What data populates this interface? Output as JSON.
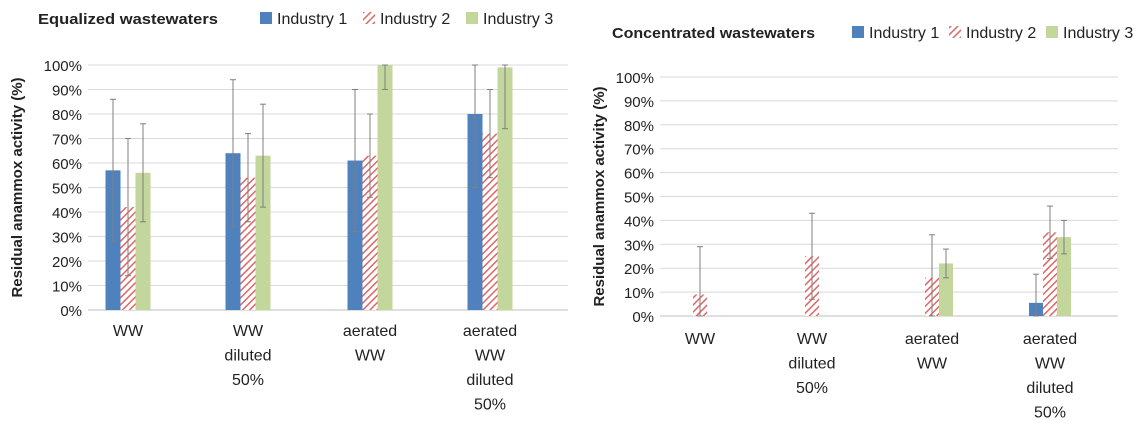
{
  "chart_data": [
    {
      "type": "bar",
      "title": "Equalized wastewaters",
      "ylabel": "Residual anammox activity (%)",
      "xlabel": "",
      "ylim": [
        0,
        100
      ],
      "ytick_labels": [
        "0%",
        "10%",
        "20%",
        "30%",
        "40%",
        "50%",
        "60%",
        "70%",
        "80%",
        "90%",
        "100%"
      ],
      "categories": [
        [
          "WW"
        ],
        [
          "WW",
          "diluted",
          "50%"
        ],
        [
          "aerated",
          "WW"
        ],
        [
          "aerated",
          "WW",
          "diluted",
          "50%"
        ]
      ],
      "series": [
        {
          "name": "Industry 1",
          "values": [
            57,
            64,
            61,
            80
          ],
          "error": [
            29,
            30,
            29,
            30
          ]
        },
        {
          "name": "Industry 2",
          "values": [
            42,
            54,
            63,
            72
          ],
          "error": [
            28,
            18,
            17,
            18
          ]
        },
        {
          "name": "Industry 3",
          "values": [
            56,
            63,
            100,
            99
          ],
          "error": [
            20,
            21,
            10,
            25
          ]
        }
      ],
      "grid": true,
      "legend_position": "top"
    },
    {
      "type": "bar",
      "title": "Concentrated wastewaters",
      "ylabel": "Residual anammox activity (%)",
      "xlabel": "",
      "ylim": [
        0,
        100
      ],
      "ytick_labels": [
        "0%",
        "10%",
        "20%",
        "30%",
        "40%",
        "50%",
        "60%",
        "70%",
        "80%",
        "90%",
        "100%"
      ],
      "categories": [
        [
          "WW"
        ],
        [
          "WW",
          "diluted",
          "50%"
        ],
        [
          "aerated",
          "WW"
        ],
        [
          "aerated",
          "WW",
          "diluted",
          "50%"
        ]
      ],
      "series": [
        {
          "name": "Industry 1",
          "values": [
            0,
            0,
            0,
            5.5
          ],
          "error": [
            0,
            0,
            0,
            12
          ]
        },
        {
          "name": "Industry 2",
          "values": [
            9,
            25,
            16,
            35
          ],
          "error": [
            20,
            18,
            18,
            11
          ]
        },
        {
          "name": "Industry 3",
          "values": [
            0,
            0,
            22,
            33
          ],
          "error": [
            0,
            0,
            6,
            7
          ]
        }
      ],
      "grid": true,
      "legend_position": "top"
    }
  ],
  "colors": {
    "industry1": "#4f81bd",
    "industry2_stripe": "#e06666",
    "industry3": "#c3d69b",
    "grid": "#d9d9d9",
    "error_bar": "#7f7f7f"
  }
}
